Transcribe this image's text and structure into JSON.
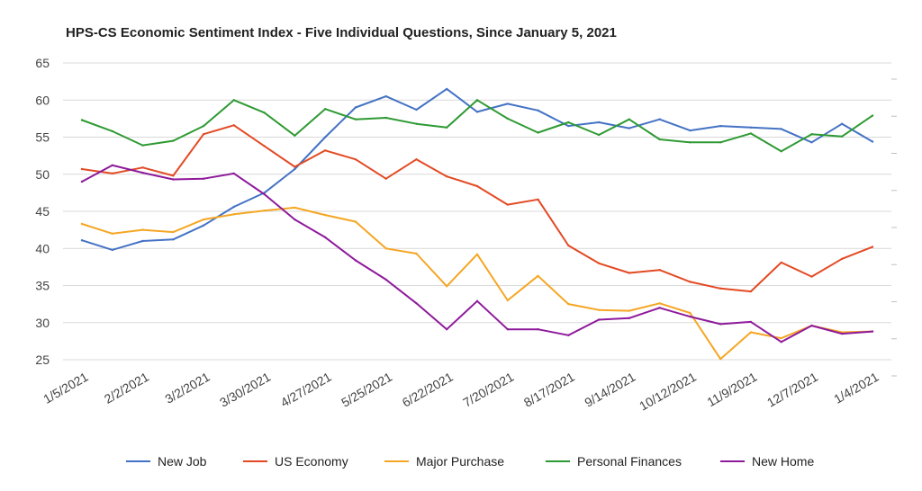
{
  "chart_data": {
    "type": "line",
    "title": "HPS-CS Economic Sentiment Index - Five Individual Questions, Since January 5, 2021",
    "xlabel": "",
    "ylabel": "",
    "ylim": [
      25,
      65
    ],
    "y_ticks": [
      25,
      30,
      35,
      40,
      45,
      50,
      55,
      60,
      65
    ],
    "grid": true,
    "legend_position": "bottom",
    "x_tick_labels": [
      "1/5/2021",
      "2/2/2021",
      "3/2/2021",
      "3/30/2021",
      "4/27/2021",
      "5/25/2021",
      "6/22/2021",
      "7/20/2021",
      "8/17/2021",
      "9/14/2021",
      "10/12/2021",
      "11/9/2021",
      "12/7/2021",
      "1/4/2021"
    ],
    "point_count": 27,
    "series": [
      {
        "name": "New Job",
        "color": "#4472c4",
        "values": [
          41.1,
          39.8,
          41.0,
          41.2,
          43.1,
          45.6,
          47.5,
          50.7,
          55.0,
          59.0,
          60.5,
          58.7,
          61.5,
          58.4,
          59.5,
          58.6,
          56.5,
          57.0,
          56.2,
          57.4,
          55.9,
          56.5,
          56.3,
          56.1,
          54.3,
          56.8,
          54.4
        ]
      },
      {
        "name": "US Economy",
        "color": "#e34a24",
        "values": [
          50.7,
          50.1,
          50.9,
          49.8,
          55.4,
          56.6,
          53.8,
          51.0,
          53.2,
          52.0,
          49.4,
          52.0,
          49.7,
          48.4,
          45.9,
          46.6,
          40.4,
          38.0,
          36.7,
          37.1,
          35.5,
          34.6,
          34.2,
          38.1,
          36.2,
          38.6,
          40.2
        ]
      },
      {
        "name": "Major Purchase",
        "color": "#f5a623",
        "values": [
          43.3,
          42.0,
          42.5,
          42.2,
          43.9,
          44.6,
          45.1,
          45.5,
          44.5,
          43.6,
          40.0,
          39.3,
          34.9,
          39.2,
          33.0,
          36.3,
          32.5,
          31.7,
          31.6,
          32.6,
          31.3,
          25.1,
          28.7,
          27.9,
          29.6,
          28.7,
          28.8
        ]
      },
      {
        "name": "Personal Finances",
        "color": "#2e9a33",
        "values": [
          57.3,
          55.8,
          53.9,
          54.5,
          56.5,
          60.0,
          58.3,
          55.2,
          58.8,
          57.4,
          57.6,
          56.8,
          56.3,
          60.0,
          57.5,
          55.6,
          57.0,
          55.3,
          57.4,
          54.7,
          54.3,
          54.3,
          55.5,
          53.1,
          55.4,
          55.1,
          57.9
        ]
      },
      {
        "name": "New Home",
        "color": "#8e1a9b",
        "values": [
          49.0,
          51.2,
          50.2,
          49.3,
          49.4,
          50.1,
          47.3,
          43.9,
          41.5,
          38.4,
          35.8,
          32.6,
          29.1,
          32.9,
          29.1,
          29.1,
          28.3,
          30.4,
          30.6,
          32.0,
          30.8,
          29.8,
          30.1,
          27.4,
          29.6,
          28.5,
          28.8
        ]
      }
    ]
  }
}
